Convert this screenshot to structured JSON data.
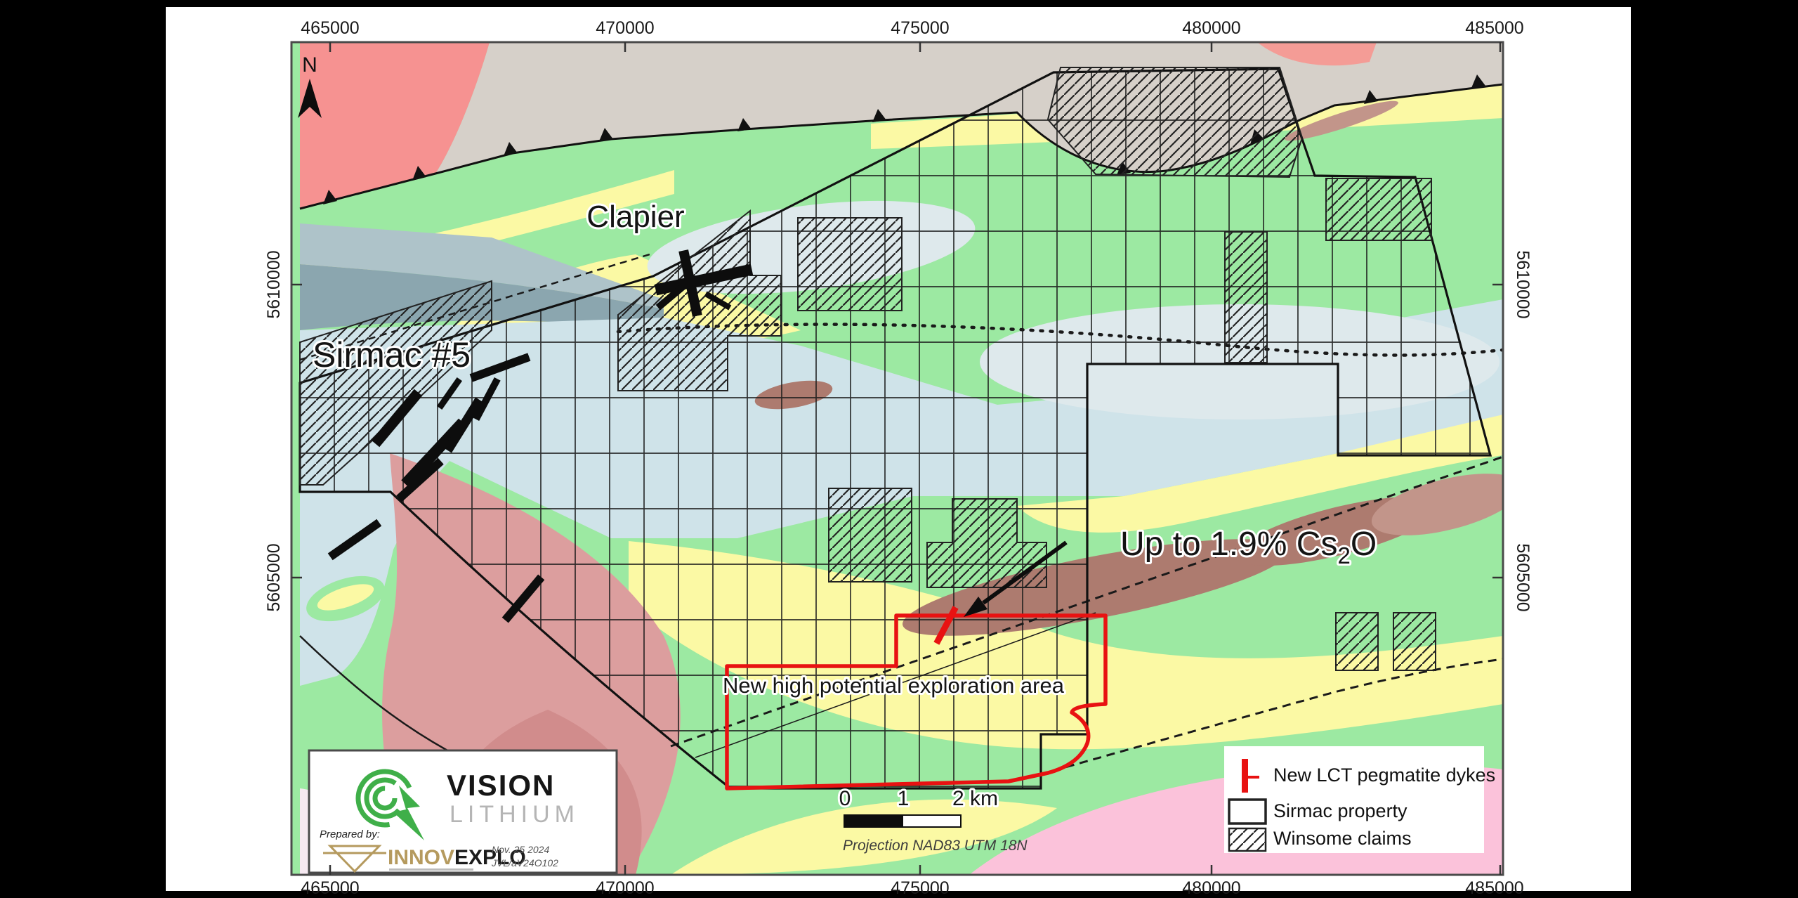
{
  "map": {
    "axis": {
      "x_labels": [
        "465000",
        "470000",
        "475000",
        "480000",
        "485000"
      ],
      "y_labels": [
        "5610000",
        "5605000"
      ]
    },
    "north_label": "N",
    "labels": {
      "clapier": "Clapier",
      "sirmac": "Sirmac #5",
      "cs_prefix": "Up to 1.9% Cs",
      "cs_sub": "2",
      "cs_suffix": "O",
      "exploration": "New high potential exploration area"
    },
    "legend": {
      "item_dykes": "New LCT pegmatite dykes",
      "item_property": "Sirmac property",
      "item_claims": "Winsome claims"
    },
    "scalebar": {
      "t0": "0",
      "t1": "1",
      "t2": "2 km",
      "projection": "Projection NAD83 UTM 18N"
    },
    "credits": {
      "prepared_by": "Prepared by:",
      "brand_top": "VISION",
      "brand_bottom": "LITHIUM",
      "preparer_gold": "INNOV",
      "preparer_black": "EXPLO",
      "date": "Nov. 25 2024",
      "code": "JVL/aV24O102"
    },
    "colors": {
      "highlight_red": "#e81212",
      "vision_green": "#3faf49",
      "innov_gold": "#b59a5e"
    }
  }
}
